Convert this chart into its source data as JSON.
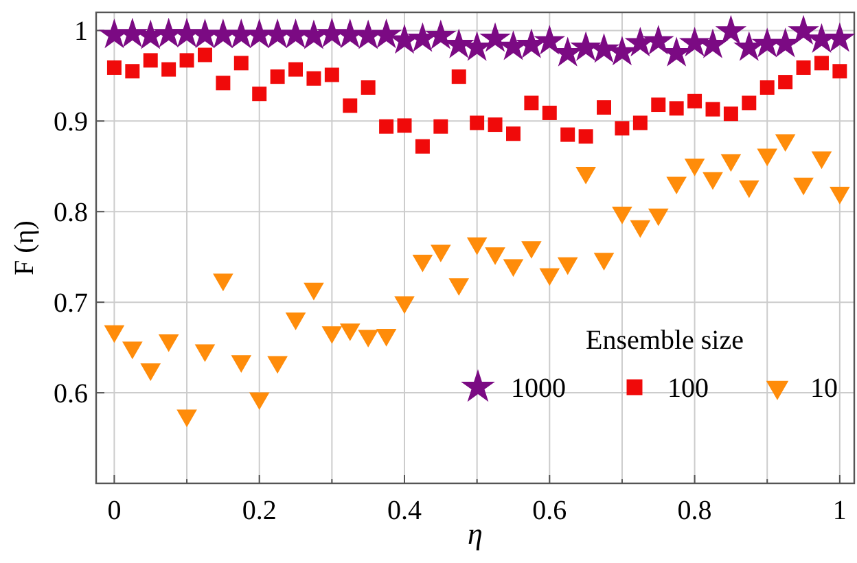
{
  "chart_data": {
    "type": "scatter",
    "xlabel": "η",
    "ylabel": "F (η)",
    "legend_title": "Ensemble size",
    "legend": "bottom right",
    "grid": true,
    "x": [
      0,
      0.025,
      0.05,
      0.075,
      0.1,
      0.125,
      0.15,
      0.175,
      0.2,
      0.225,
      0.25,
      0.275,
      0.3,
      0.325,
      0.35,
      0.375,
      0.4,
      0.425,
      0.45,
      0.475,
      0.5,
      0.525,
      0.55,
      0.575,
      0.6,
      0.625,
      0.65,
      0.675,
      0.7,
      0.725,
      0.75,
      0.775,
      0.8,
      0.825,
      0.85,
      0.875,
      0.9,
      0.925,
      0.95,
      0.975,
      1
    ],
    "xlim": [
      -0.025,
      1.02
    ],
    "ylim": [
      0.5,
      1.02
    ],
    "xticks": [
      0,
      {
        "value": 0.1,
        "label": null
      },
      0.2,
      {
        "value": 0.3,
        "label": null
      },
      0.4,
      {
        "value": 0.5,
        "label": null
      },
      0.6,
      {
        "value": 0.7,
        "label": null
      },
      0.8,
      {
        "value": 0.9,
        "label": null
      },
      1
    ],
    "yticks": [
      0.6,
      0.7,
      0.8,
      0.9,
      1
    ],
    "series": [
      {
        "name": "1000",
        "color": "#7b0a83",
        "marker": "star",
        "values": [
          0.995,
          0.996,
          0.994,
          0.996,
          0.996,
          0.995,
          0.995,
          0.995,
          0.995,
          0.995,
          0.995,
          0.994,
          0.996,
          0.995,
          0.994,
          0.995,
          0.989,
          0.991,
          0.994,
          0.984,
          0.981,
          0.991,
          0.982,
          0.984,
          0.988,
          0.975,
          0.981,
          0.979,
          0.976,
          0.986,
          0.988,
          0.975,
          0.986,
          0.984,
          0.999,
          0.981,
          0.985,
          0.985,
          0.999,
          0.99,
          0.991
        ]
      },
      {
        "name": "100",
        "color": "#f00a0a",
        "marker": "square",
        "values": [
          0.959,
          0.955,
          0.967,
          0.957,
          0.967,
          0.973,
          0.942,
          0.964,
          0.93,
          0.949,
          0.957,
          0.947,
          0.951,
          0.917,
          0.937,
          0.894,
          0.895,
          0.872,
          0.894,
          0.949,
          0.898,
          0.896,
          0.886,
          0.92,
          0.909,
          0.885,
          0.883,
          0.915,
          0.892,
          0.898,
          0.918,
          0.914,
          0.922,
          0.913,
          0.908,
          0.92,
          0.937,
          0.943,
          0.959,
          0.964,
          0.955
        ]
      },
      {
        "name": "10",
        "color": "#ff8c0a",
        "marker": "triangle",
        "values": [
          0.668,
          0.65,
          0.626,
          0.658,
          0.575,
          0.647,
          0.725,
          0.635,
          0.594,
          0.634,
          0.682,
          0.715,
          0.667,
          0.67,
          0.663,
          0.664,
          0.7,
          0.746,
          0.757,
          0.72,
          0.765,
          0.754,
          0.741,
          0.761,
          0.731,
          0.743,
          0.843,
          0.748,
          0.799,
          0.784,
          0.797,
          0.832,
          0.852,
          0.837,
          0.857,
          0.828,
          0.863,
          0.879,
          0.831,
          0.86,
          0.821
        ]
      }
    ]
  }
}
